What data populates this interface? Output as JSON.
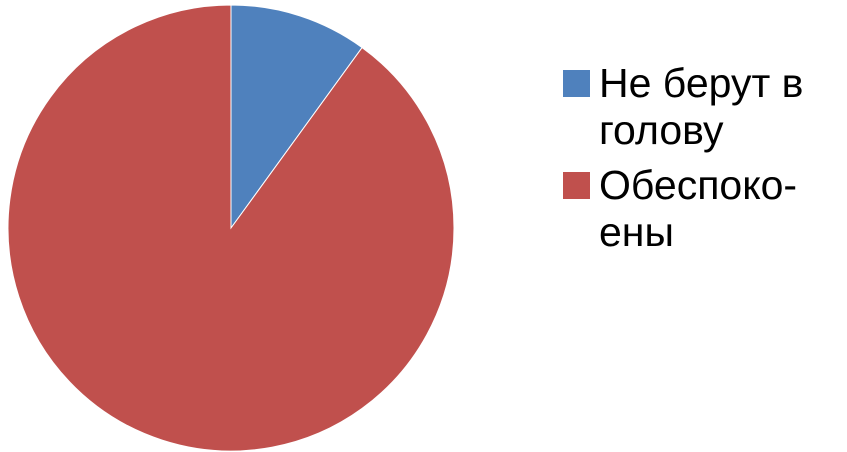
{
  "chart_data": {
    "type": "pie",
    "categories": [
      "Не берут в голову",
      "Обеспоко-ены"
    ],
    "values": [
      10,
      90
    ],
    "colors": [
      "#4F81BD",
      "#C0504D"
    ],
    "legend_placement": "right",
    "legend_labels": [
      "Не берут в\nголову",
      "Обеспоко-\nены"
    ],
    "start_angle_deg": 0,
    "direction": "clockwise"
  }
}
